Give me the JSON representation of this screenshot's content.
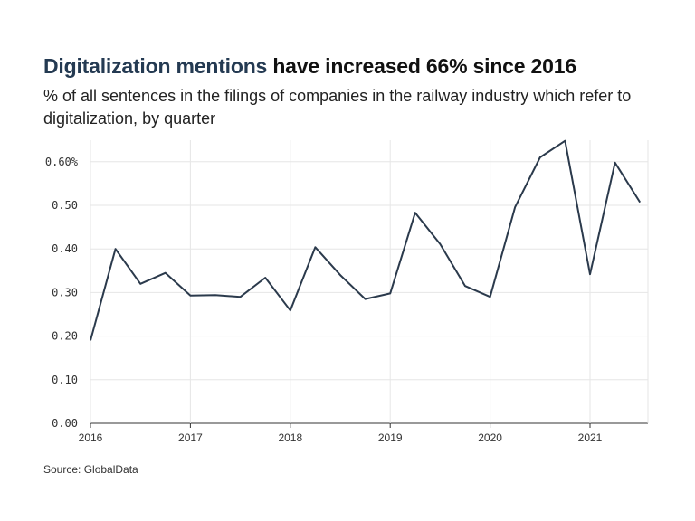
{
  "title": {
    "highlight": "Digitalization mentions",
    "rest": " have increased 66% since 2016"
  },
  "subtitle": "% of all sentences in the filings of companies in the railway industry which refer to digitalization, by quarter",
  "source": "Source: GlobalData",
  "colors": {
    "line": "#2b3a4c",
    "title_highlight": "#243a52",
    "grid": "#e6e6e6"
  },
  "chart_data": {
    "type": "line",
    "title": "Digitalization mentions have increased 66% since 2016",
    "xlabel": "",
    "ylabel": "",
    "grid": true,
    "ylim": [
      0,
      0.65
    ],
    "xlim": [
      2016,
      2021.6
    ],
    "yticks": [
      {
        "value": 0,
        "label": "0.00"
      },
      {
        "value": 0.1,
        "label": "0.10"
      },
      {
        "value": 0.2,
        "label": "0.20"
      },
      {
        "value": 0.3,
        "label": "0.30"
      },
      {
        "value": 0.4,
        "label": "0.40"
      },
      {
        "value": 0.5,
        "label": "0.50"
      },
      {
        "value": 0.6,
        "label": "0.60%"
      }
    ],
    "xticks": [
      {
        "value": 2016,
        "label": "2016"
      },
      {
        "value": 2017,
        "label": "2017"
      },
      {
        "value": 2018,
        "label": "2018"
      },
      {
        "value": 2019,
        "label": "2019"
      },
      {
        "value": 2020,
        "label": "2020"
      },
      {
        "value": 2021,
        "label": "2021"
      }
    ],
    "x": [
      2016,
      2016.25,
      2016.5,
      2016.75,
      2017,
      2017.25,
      2017.5,
      2017.75,
      2018,
      2018.25,
      2018.5,
      2018.75,
      2019,
      2019.25,
      2019.5,
      2019.75,
      2020,
      2020.25,
      2020.5,
      2020.75,
      2021,
      2021.25,
      2021.5
    ],
    "values": [
      0.19,
      0.4,
      0.32,
      0.345,
      0.293,
      0.294,
      0.29,
      0.334,
      0.259,
      0.404,
      0.34,
      0.285,
      0.298,
      0.483,
      0.411,
      0.315,
      0.29,
      0.496,
      0.61,
      0.648,
      0.342,
      0.598,
      0.507
    ]
  }
}
